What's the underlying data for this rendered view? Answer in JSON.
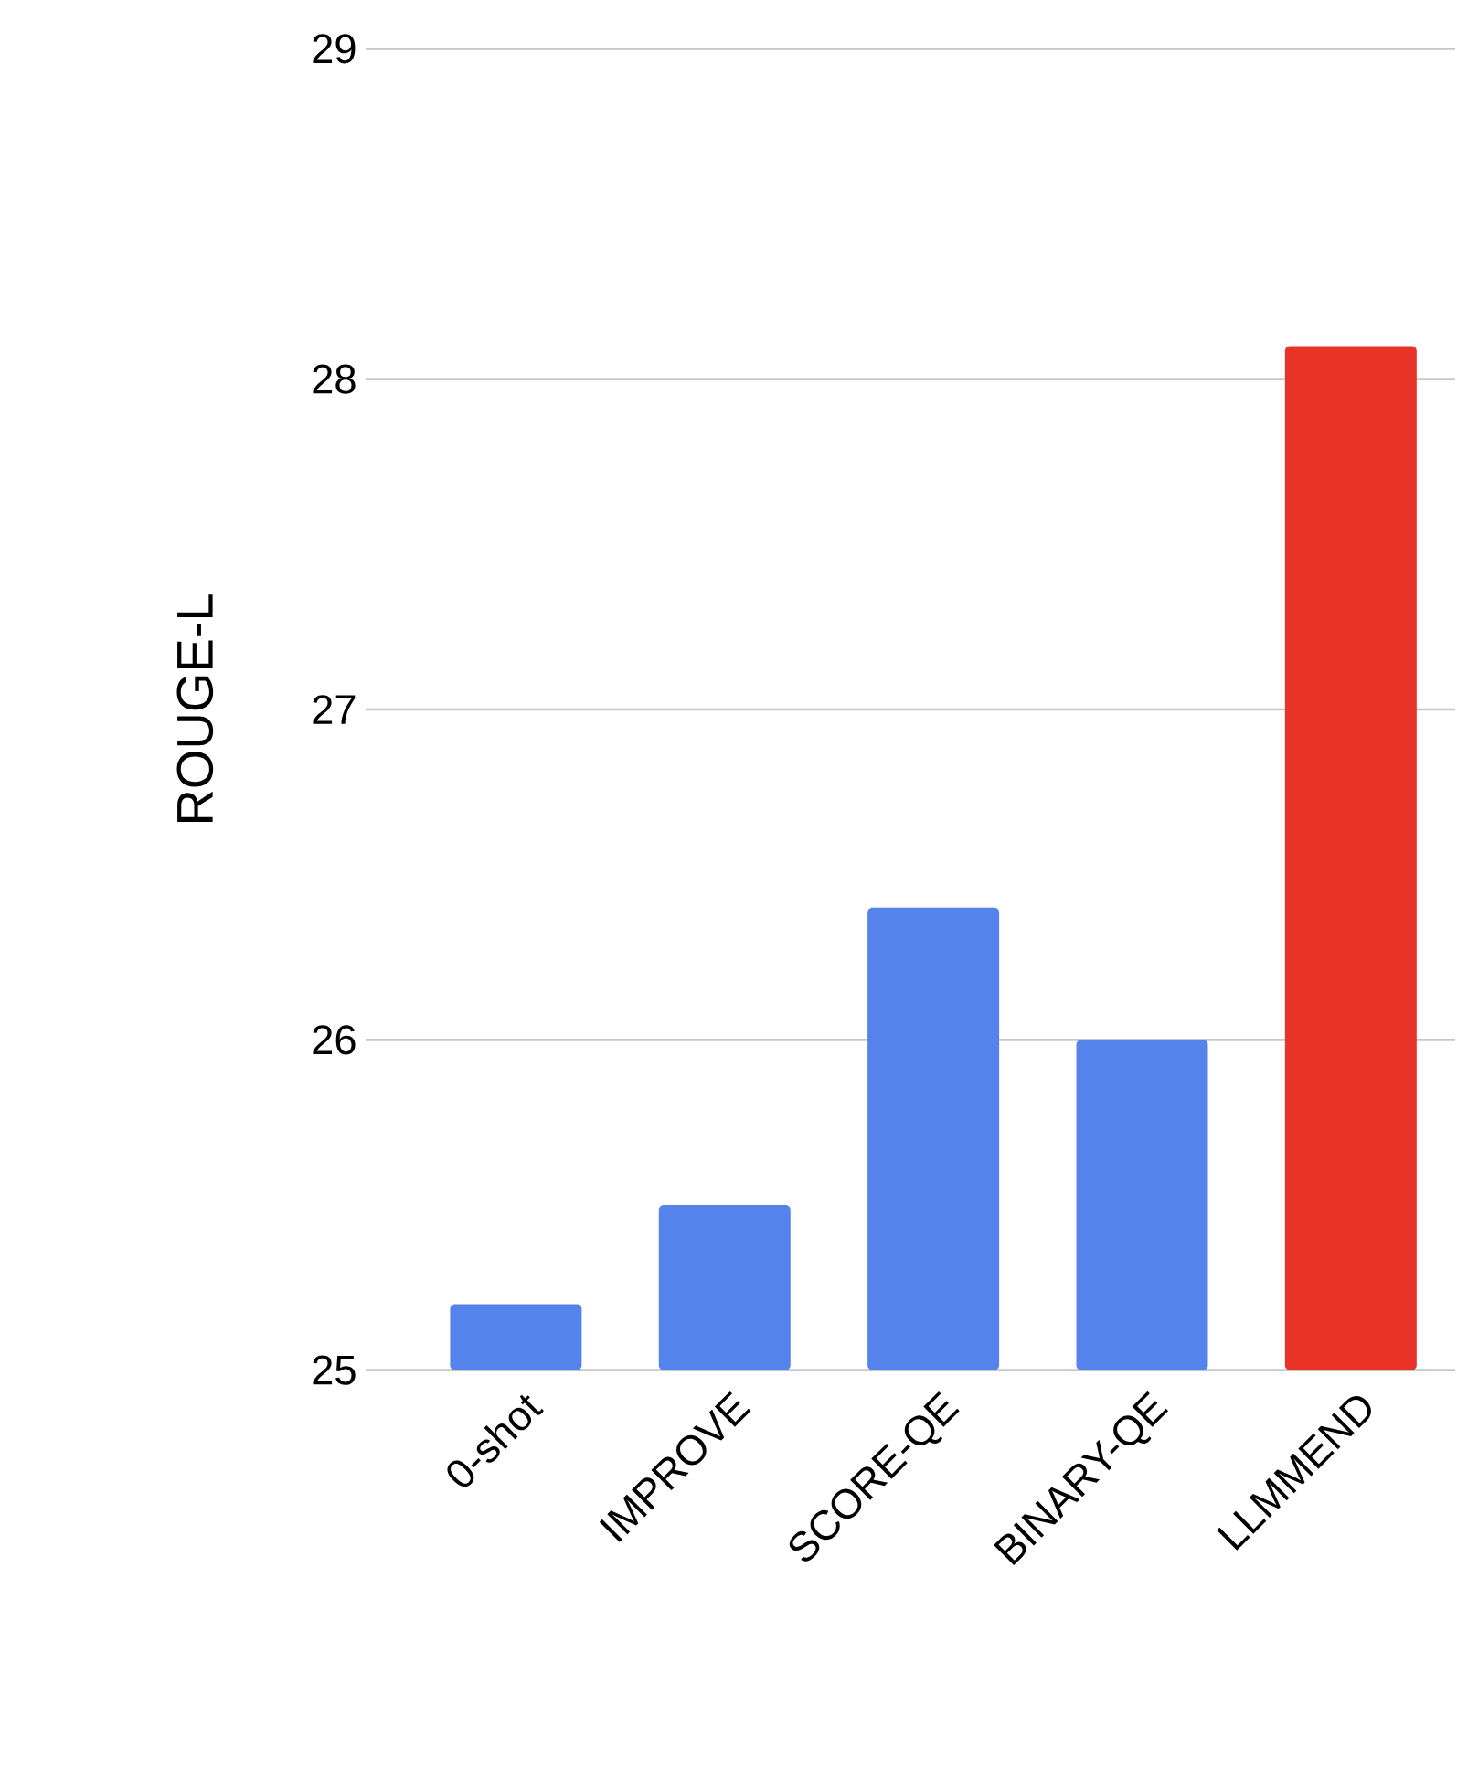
{
  "chart_data": {
    "type": "bar",
    "ylabel": "ROUGE-L",
    "categories": [
      "0-shot",
      "IMPROVE",
      "SCORE-QE",
      "BINARY-QE",
      "LLMMEND"
    ],
    "values": [
      25.2,
      25.5,
      26.4,
      26.0,
      28.1
    ],
    "colors": [
      "#5484eb",
      "#5484eb",
      "#5484eb",
      "#5484eb",
      "#e83326"
    ],
    "ylim": [
      25,
      29
    ],
    "yticks": [
      25,
      26,
      27,
      28,
      29
    ],
    "grid": "y"
  }
}
